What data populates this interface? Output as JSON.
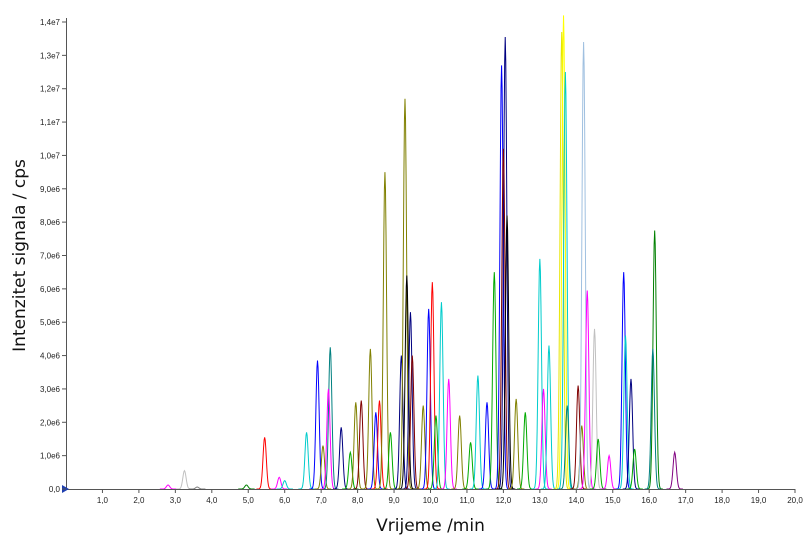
{
  "chart_data": {
    "type": "line",
    "title": "",
    "xlabel": "Vrijeme /min",
    "ylabel": "Intenzitet signala / cps",
    "xlim": [
      0.0,
      20.0
    ],
    "ylim": [
      0,
      14000000
    ],
    "x_ticks": [
      "1,0",
      "2,0",
      "3,0",
      "4,0",
      "5,0",
      "6,0",
      "7,0",
      "8,0",
      "9,0",
      "10,0",
      "11,0",
      "12,0",
      "13,0",
      "14,0",
      "15,0",
      "16,0",
      "17,0",
      "18,0",
      "19,0",
      "20,0"
    ],
    "y_ticks": [
      "0,0",
      "1,0e6",
      "2,0e6",
      "3,0e6",
      "4,0e6",
      "5,0e6",
      "6,0e6",
      "7,0e6",
      "8,0e6",
      "9,0e6",
      "1,0e7",
      "1,1e7",
      "1,2e7",
      "1,3e7",
      "1,4e7"
    ],
    "grid": false,
    "legend": "none",
    "peaks": [
      {
        "t": 2.8,
        "h": 120000,
        "color": "#ff00ff"
      },
      {
        "t": 3.25,
        "h": 550000,
        "color": "#c0c0c0"
      },
      {
        "t": 3.6,
        "h": 60000,
        "color": "#808080"
      },
      {
        "t": 4.95,
        "h": 120000,
        "color": "#008000"
      },
      {
        "t": 5.45,
        "h": 1550000,
        "color": "#ff0000"
      },
      {
        "t": 5.85,
        "h": 350000,
        "color": "#ff00ff"
      },
      {
        "t": 6.0,
        "h": 250000,
        "color": "#00cccc"
      },
      {
        "t": 6.6,
        "h": 1700000,
        "color": "#00cccc"
      },
      {
        "t": 6.9,
        "h": 3850000,
        "color": "#0000ff"
      },
      {
        "t": 7.05,
        "h": 1300000,
        "color": "#808000"
      },
      {
        "t": 7.25,
        "h": 4250000,
        "color": "#008080"
      },
      {
        "t": 7.2,
        "h": 3000000,
        "color": "#ff00ff"
      },
      {
        "t": 7.55,
        "h": 1850000,
        "color": "#000080"
      },
      {
        "t": 7.8,
        "h": 1100000,
        "color": "#00aa00"
      },
      {
        "t": 7.95,
        "h": 2600000,
        "color": "#808000"
      },
      {
        "t": 8.1,
        "h": 2650000,
        "color": "#800000"
      },
      {
        "t": 8.35,
        "h": 4200000,
        "color": "#808000"
      },
      {
        "t": 8.5,
        "h": 2300000,
        "color": "#0000ff"
      },
      {
        "t": 8.6,
        "h": 2650000,
        "color": "#ff0000"
      },
      {
        "t": 8.75,
        "h": 9500000,
        "color": "#808000"
      },
      {
        "t": 8.9,
        "h": 1700000,
        "color": "#00aa00"
      },
      {
        "t": 9.2,
        "h": 4000000,
        "color": "#000080"
      },
      {
        "t": 9.3,
        "h": 11700000,
        "color": "#808000"
      },
      {
        "t": 9.35,
        "h": 6400000,
        "color": "#000000"
      },
      {
        "t": 9.45,
        "h": 5300000,
        "color": "#000080"
      },
      {
        "t": 9.5,
        "h": 4000000,
        "color": "#800000"
      },
      {
        "t": 9.8,
        "h": 2500000,
        "color": "#808000"
      },
      {
        "t": 9.95,
        "h": 5400000,
        "color": "#0000ff"
      },
      {
        "t": 10.05,
        "h": 6200000,
        "color": "#ff0000"
      },
      {
        "t": 10.15,
        "h": 2200000,
        "color": "#00aa00"
      },
      {
        "t": 10.3,
        "h": 5600000,
        "color": "#00cccc"
      },
      {
        "t": 10.5,
        "h": 3300000,
        "color": "#ff00ff"
      },
      {
        "t": 10.8,
        "h": 2200000,
        "color": "#808000"
      },
      {
        "t": 11.1,
        "h": 1400000,
        "color": "#00aa00"
      },
      {
        "t": 11.3,
        "h": 3400000,
        "color": "#00cccc"
      },
      {
        "t": 11.55,
        "h": 2600000,
        "color": "#0000ff"
      },
      {
        "t": 11.75,
        "h": 6500000,
        "color": "#00aa00"
      },
      {
        "t": 11.95,
        "h": 12700000,
        "color": "#0000ff"
      },
      {
        "t": 12.05,
        "h": 13550000,
        "color": "#000080"
      },
      {
        "t": 12.0,
        "h": 10200000,
        "color": "#800000"
      },
      {
        "t": 12.1,
        "h": 8200000,
        "color": "#000000"
      },
      {
        "t": 12.35,
        "h": 2700000,
        "color": "#808000"
      },
      {
        "t": 12.6,
        "h": 2300000,
        "color": "#00aa00"
      },
      {
        "t": 13.0,
        "h": 6900000,
        "color": "#00cccc"
      },
      {
        "t": 13.1,
        "h": 3000000,
        "color": "#ff00ff"
      },
      {
        "t": 13.25,
        "h": 4300000,
        "color": "#00cccc"
      },
      {
        "t": 13.6,
        "h": 13700000,
        "color": "#e6e600"
      },
      {
        "t": 13.65,
        "h": 14200000,
        "color": "#ffff00"
      },
      {
        "t": 13.7,
        "h": 12500000,
        "color": "#00cccc"
      },
      {
        "t": 13.75,
        "h": 2500000,
        "color": "#008080"
      },
      {
        "t": 14.05,
        "h": 3100000,
        "color": "#800000"
      },
      {
        "t": 14.15,
        "h": 1900000,
        "color": "#808000"
      },
      {
        "t": 14.2,
        "h": 13400000,
        "color": "#a0c0e0"
      },
      {
        "t": 14.3,
        "h": 5950000,
        "color": "#ff00ff"
      },
      {
        "t": 14.5,
        "h": 4800000,
        "color": "#c0c0c0"
      },
      {
        "t": 14.6,
        "h": 1500000,
        "color": "#00aa00"
      },
      {
        "t": 14.9,
        "h": 1000000,
        "color": "#ff00ff"
      },
      {
        "t": 15.3,
        "h": 6500000,
        "color": "#0000ff"
      },
      {
        "t": 15.35,
        "h": 4600000,
        "color": "#00cccc"
      },
      {
        "t": 15.5,
        "h": 3300000,
        "color": "#000080"
      },
      {
        "t": 15.6,
        "h": 1200000,
        "color": "#00aa00"
      },
      {
        "t": 16.15,
        "h": 7750000,
        "color": "#008000"
      },
      {
        "t": 16.1,
        "h": 4200000,
        "color": "#008080"
      },
      {
        "t": 16.7,
        "h": 1100000,
        "color": "#800080"
      }
    ]
  }
}
